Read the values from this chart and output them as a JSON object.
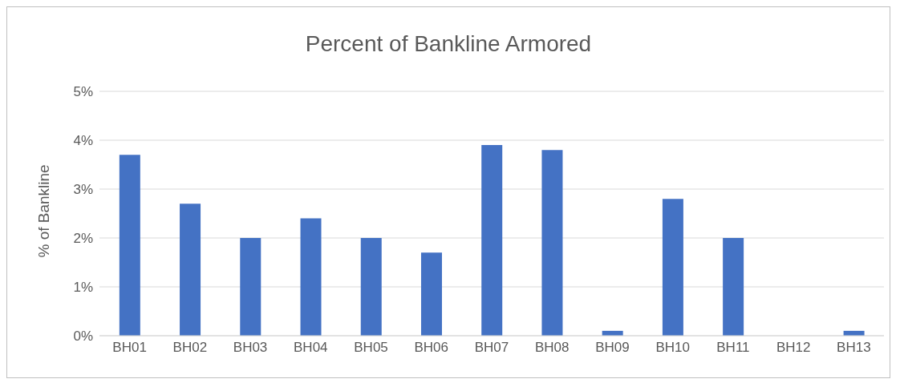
{
  "chart_data": {
    "type": "bar",
    "title": "Percent of Bankline Armored",
    "ylabel": "% of Bankline",
    "categories": [
      "BH01",
      "BH02",
      "BH03",
      "BH04",
      "BH05",
      "BH06",
      "BH07",
      "BH08",
      "BH09",
      "BH10",
      "BH11",
      "BH12",
      "BH13"
    ],
    "values": [
      3.7,
      2.7,
      2.0,
      2.4,
      2.0,
      1.7,
      3.9,
      3.8,
      0.1,
      2.8,
      2.0,
      0,
      0.1
    ],
    "color": "#4472c4",
    "ylim": [
      0,
      5
    ],
    "yticks": [
      {
        "value": 0,
        "label": "0%"
      },
      {
        "value": 1,
        "label": "1%"
      },
      {
        "value": 2,
        "label": "2%"
      },
      {
        "value": 3,
        "label": "3%"
      },
      {
        "value": 4,
        "label": "4%"
      },
      {
        "value": 5,
        "label": "5%"
      }
    ],
    "grid": "y",
    "legend": false
  }
}
